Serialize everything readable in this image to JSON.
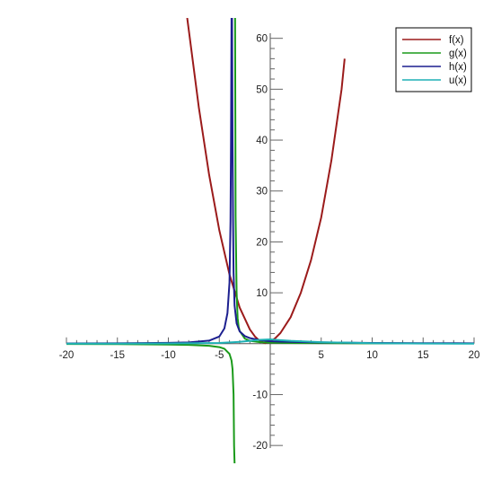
{
  "chart_data": {
    "type": "line",
    "title": "",
    "xlabel": "",
    "ylabel": "",
    "xlim": [
      -20,
      20
    ],
    "ylim": [
      -23.5,
      64
    ],
    "x_ticks": [
      -20,
      -15,
      -10,
      -5,
      5,
      10,
      15,
      20
    ],
    "y_ticks": [
      -20,
      -10,
      10,
      20,
      30,
      40,
      50,
      60
    ],
    "x_minor_step": 1,
    "y_minor_step": 2,
    "grid": false,
    "legend_position": "top-right",
    "series": [
      {
        "name": "f(x)",
        "color": "#9b1b1b",
        "x": [
          -8.15,
          -8,
          -7,
          -6,
          -5,
          -4,
          -3,
          -2,
          -1.5,
          -1,
          -0.5,
          0,
          0.5,
          1,
          2,
          3,
          4,
          5,
          6,
          7,
          7.3
        ],
        "y": [
          64,
          61.7,
          46.3,
          33.2,
          22.3,
          13.6,
          7.1,
          2.8,
          1.4,
          0.5,
          0.1,
          0.4,
          1.1,
          2.1,
          5.2,
          10.0,
          16.4,
          24.8,
          36.0,
          50.0,
          56.0
        ]
      },
      {
        "name": "g(x)",
        "color": "#1a9a1a",
        "x": [
          -20,
          -15,
          -10,
          -8,
          -6,
          -5,
          -4.5,
          -4,
          -3.8,
          -3.7,
          -3.6,
          -3.55,
          -3.5,
          -3.45,
          -3.4,
          -3.3,
          -3.2,
          -3.1,
          -3,
          -2.5,
          -2,
          -1,
          0,
          2,
          5,
          10,
          15,
          20
        ],
        "y": [
          -0.06,
          -0.09,
          -0.16,
          -0.23,
          -0.42,
          -0.67,
          -1.0,
          -2.0,
          -3.3,
          -5.0,
          -10.0,
          -20.0,
          -23.5,
          64,
          25.0,
          10.0,
          5.0,
          3.3,
          2.5,
          1.0,
          0.55,
          0.3,
          0.2,
          0.15,
          0.11,
          0.07,
          0.05,
          0.04
        ]
      },
      {
        "name": "h(x)",
        "color": "#1c1f8f",
        "x": [
          -20,
          -15,
          -10,
          -8,
          -6,
          -5,
          -4.5,
          -4.2,
          -4,
          -3.9,
          -3.85,
          -3.8,
          -3.75,
          -3.7,
          -3.65,
          -3.6,
          -3.5,
          -3.3,
          -3,
          -2.5,
          -2,
          -1,
          0,
          1,
          2,
          5,
          10,
          15,
          20
        ],
        "y": [
          0.05,
          0.08,
          0.16,
          0.25,
          0.6,
          1.4,
          3.0,
          6.0,
          12.0,
          24.0,
          40.0,
          64,
          64,
          40.0,
          24.0,
          14.0,
          7.5,
          4.0,
          2.4,
          1.5,
          1.1,
          0.7,
          0.5,
          0.4,
          0.35,
          0.25,
          0.15,
          0.1,
          0.08
        ]
      },
      {
        "name": "u(x)",
        "color": "#1fb0b5",
        "x": [
          -20,
          -15,
          -10,
          -5,
          -3,
          -2,
          -1,
          0,
          1,
          2,
          5,
          10,
          15,
          20
        ],
        "y": [
          0.0,
          0.0,
          0.05,
          0.15,
          0.35,
          0.55,
          0.75,
          0.85,
          0.7,
          0.55,
          0.3,
          0.1,
          0.03,
          0.0
        ]
      }
    ]
  }
}
